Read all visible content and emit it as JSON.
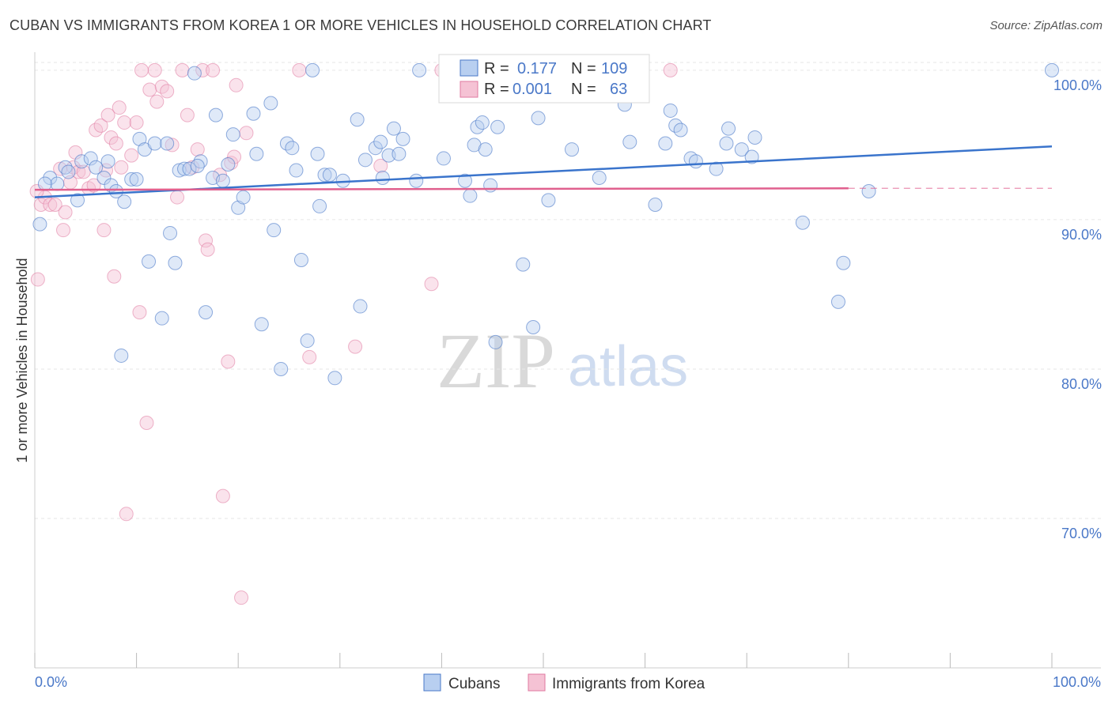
{
  "header": {
    "title": "CUBAN VS IMMIGRANTS FROM KOREA 1 OR MORE VEHICLES IN HOUSEHOLD CORRELATION CHART",
    "source": "Source: ZipAtlas.com"
  },
  "watermark": {
    "zip": "ZIP",
    "atlas": "atlas"
  },
  "legend_box": {
    "row1": {
      "r_label": "R =",
      "r_value": "0.177",
      "n_label": "N =",
      "n_value": "109"
    },
    "row2": {
      "r_label": "R =",
      "r_value": "0.001",
      "n_label": "N =",
      "n_value": "63"
    }
  },
  "bottom_legend": {
    "cubans": "Cubans",
    "korea": "Immigrants from Korea"
  },
  "colors": {
    "blue": "#4a78c8",
    "blue_line": "#3a74cc",
    "pink": "#e07aa0",
    "pink_line": "#e0608e",
    "blue_fill": "#b8cff0",
    "pink_fill": "#f5c2d4"
  },
  "chart_data": {
    "type": "scatter",
    "title": "CUBAN VS IMMIGRANTS FROM KOREA 1 OR MORE VEHICLES IN HOUSEHOLD CORRELATION CHART",
    "ylabel": "1 or more Vehicles in Household",
    "xlabel": "",
    "xlim": [
      0,
      100
    ],
    "ylim": [
      60,
      101
    ],
    "x_tick_labels": [
      "0.0%",
      "100.0%"
    ],
    "y_ticks": [
      {
        "value": 100,
        "label": "100.0%"
      },
      {
        "value": 90,
        "label": "90.0%"
      },
      {
        "value": 80,
        "label": "80.0%"
      },
      {
        "value": 70,
        "label": "70.0%"
      }
    ],
    "series": [
      {
        "name": "Cubans",
        "r": 0.177,
        "n": 109,
        "trend": {
          "x": [
            0,
            100
          ],
          "y": [
            91.5,
            94.9
          ]
        },
        "points": [
          [
            0.5,
            89.7
          ],
          [
            1.5,
            92.8
          ],
          [
            2.2,
            92.4
          ],
          [
            3,
            93.5
          ],
          [
            3.3,
            93.2
          ],
          [
            4.2,
            91.3
          ],
          [
            4.6,
            93.9
          ],
          [
            5.5,
            94.1
          ],
          [
            6,
            93.5
          ],
          [
            6.8,
            92.8
          ],
          [
            7.2,
            93.9
          ],
          [
            7.5,
            92.3
          ],
          [
            8,
            91.9
          ],
          [
            8.5,
            80.9
          ],
          [
            8.8,
            91.2
          ],
          [
            9.5,
            92.7
          ],
          [
            10,
            92.7
          ],
          [
            10.3,
            95.4
          ],
          [
            10.8,
            94.7
          ],
          [
            11.2,
            87.2
          ],
          [
            11.8,
            95.1
          ],
          [
            12.5,
            83.4
          ],
          [
            13,
            95.1
          ],
          [
            13.3,
            89.1
          ],
          [
            13.8,
            87.1
          ],
          [
            14.2,
            93.3
          ],
          [
            14.7,
            93.4
          ],
          [
            15.2,
            93.4
          ],
          [
            15.7,
            99.8
          ],
          [
            16.3,
            93.9
          ],
          [
            16.8,
            83.8
          ],
          [
            17.5,
            92.8
          ],
          [
            17.8,
            97
          ],
          [
            18.5,
            92.6
          ],
          [
            19,
            93.7
          ],
          [
            19.5,
            95.7
          ],
          [
            20,
            90.8
          ],
          [
            20.5,
            91.5
          ],
          [
            21.5,
            97.1
          ],
          [
            21.8,
            94.4
          ],
          [
            22.3,
            83
          ],
          [
            23.2,
            97.8
          ],
          [
            23.5,
            89.3
          ],
          [
            24.2,
            80
          ],
          [
            24.8,
            95.1
          ],
          [
            25.3,
            94.8
          ],
          [
            25.7,
            93.3
          ],
          [
            26.2,
            87.3
          ],
          [
            26.8,
            81.9
          ],
          [
            27.3,
            100
          ],
          [
            27.8,
            94.4
          ],
          [
            28,
            90.9
          ],
          [
            28.5,
            93
          ],
          [
            29,
            93
          ],
          [
            29.5,
            79.4
          ],
          [
            30.3,
            92.6
          ],
          [
            31.7,
            96.7
          ],
          [
            32,
            84.2
          ],
          [
            32.5,
            94
          ],
          [
            33.5,
            94.8
          ],
          [
            34.2,
            92.8
          ],
          [
            34.8,
            94.3
          ],
          [
            35.3,
            96.1
          ],
          [
            35.8,
            94.4
          ],
          [
            36.2,
            95.4
          ],
          [
            37.5,
            92.6
          ],
          [
            37.8,
            100
          ],
          [
            40.2,
            94.1
          ],
          [
            42.3,
            92.6
          ],
          [
            42.8,
            91.6
          ],
          [
            43.2,
            95
          ],
          [
            43.5,
            96.2
          ],
          [
            44,
            96.5
          ],
          [
            44.3,
            94.7
          ],
          [
            44.8,
            92.3
          ],
          [
            45.3,
            81.8
          ],
          [
            45.5,
            96.2
          ],
          [
            46.2,
            99.5
          ],
          [
            48,
            87
          ],
          [
            49,
            82.8
          ],
          [
            49.5,
            96.8
          ],
          [
            50.5,
            91.3
          ],
          [
            52,
            99.2
          ],
          [
            52.8,
            94.7
          ],
          [
            53.8,
            98.5
          ],
          [
            55.5,
            92.8
          ],
          [
            58.5,
            95.2
          ],
          [
            61,
            91
          ],
          [
            62,
            95.1
          ],
          [
            62.5,
            97.3
          ],
          [
            63,
            96.3
          ],
          [
            63.5,
            96
          ],
          [
            64.5,
            94.1
          ],
          [
            65,
            93.9
          ],
          [
            67,
            93.4
          ],
          [
            68,
            95.1
          ],
          [
            68.2,
            96.1
          ],
          [
            69.5,
            94.7
          ],
          [
            70.5,
            94.2
          ],
          [
            70.8,
            95.5
          ],
          [
            75.5,
            89.8
          ],
          [
            79,
            84.5
          ],
          [
            79.5,
            87.1
          ],
          [
            82,
            91.9
          ],
          [
            100,
            100
          ],
          [
            1,
            92.4
          ],
          [
            16,
            93.6
          ],
          [
            34,
            95.2
          ],
          [
            58,
            97.7
          ]
        ]
      },
      {
        "name": "Immigrants from Korea",
        "r": 0.001,
        "n": 63,
        "trend": {
          "x": [
            0,
            80
          ],
          "y": [
            92.0,
            92.1
          ]
        },
        "trend_dashed_to": 100,
        "points": [
          [
            0.3,
            86
          ],
          [
            0.6,
            91
          ],
          [
            1,
            91.5
          ],
          [
            1.5,
            91
          ],
          [
            2,
            91
          ],
          [
            2.5,
            93.4
          ],
          [
            2.8,
            89.3
          ],
          [
            3,
            90.5
          ],
          [
            3.5,
            92.5
          ],
          [
            3.8,
            93.5
          ],
          [
            4,
            94.5
          ],
          [
            4.3,
            93.2
          ],
          [
            4.8,
            93.2
          ],
          [
            5.3,
            92.1
          ],
          [
            5.8,
            92.3
          ],
          [
            6,
            96
          ],
          [
            6.5,
            96.3
          ],
          [
            6.8,
            89.3
          ],
          [
            7,
            93.3
          ],
          [
            7.2,
            97
          ],
          [
            7.5,
            95.5
          ],
          [
            7.8,
            86.2
          ],
          [
            8,
            95.1
          ],
          [
            8.3,
            97.5
          ],
          [
            8.5,
            93.5
          ],
          [
            8.8,
            96.5
          ],
          [
            9,
            70.3
          ],
          [
            9.5,
            94.3
          ],
          [
            10,
            96.5
          ],
          [
            10.3,
            83.8
          ],
          [
            10.5,
            100
          ],
          [
            11,
            76.4
          ],
          [
            11.3,
            98.7
          ],
          [
            11.8,
            100
          ],
          [
            12,
            97.9
          ],
          [
            12.5,
            98.9
          ],
          [
            13,
            98.6
          ],
          [
            13.5,
            95
          ],
          [
            14,
            91.5
          ],
          [
            14.5,
            100
          ],
          [
            15,
            97
          ],
          [
            15.5,
            93.5
          ],
          [
            16,
            94.7
          ],
          [
            16.5,
            100
          ],
          [
            16.8,
            88.6
          ],
          [
            17,
            88
          ],
          [
            17.5,
            100
          ],
          [
            18.2,
            93
          ],
          [
            18.5,
            71.5
          ],
          [
            19,
            80.5
          ],
          [
            19.3,
            93.8
          ],
          [
            19.6,
            94.2
          ],
          [
            19.8,
            99
          ],
          [
            20.3,
            64.7
          ],
          [
            20.8,
            95.8
          ],
          [
            26,
            100
          ],
          [
            27,
            80.8
          ],
          [
            31.5,
            81.5
          ],
          [
            34,
            93.6
          ],
          [
            39,
            85.7
          ],
          [
            40,
            100
          ],
          [
            62.5,
            100
          ],
          [
            0.2,
            91.9
          ]
        ]
      }
    ],
    "grid": true,
    "legend": "top-center"
  }
}
